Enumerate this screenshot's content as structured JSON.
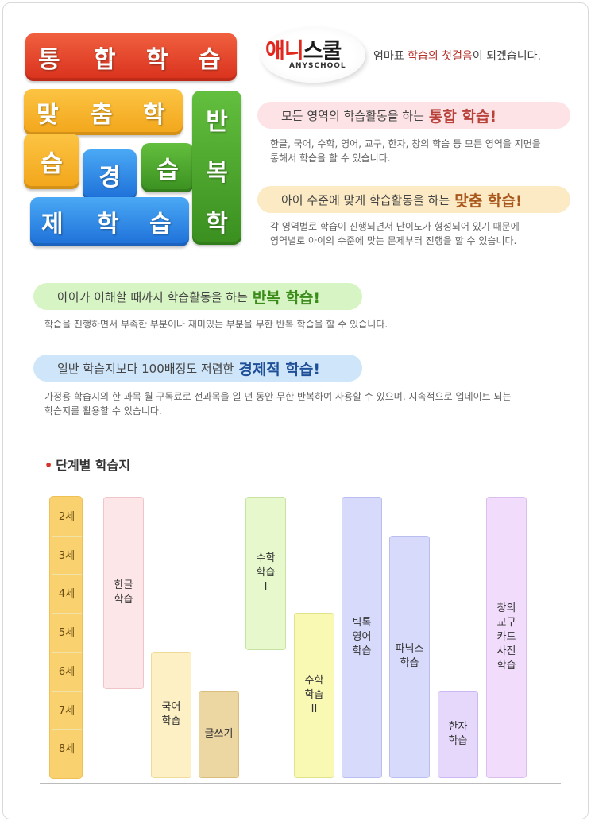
{
  "tiles": [
    {
      "t": "통",
      "c": "red"
    },
    {
      "t": "합",
      "c": "red"
    },
    {
      "t": "학",
      "c": "red"
    },
    {
      "t": "습",
      "c": "red"
    },
    {
      "t": "맞",
      "c": "yellow"
    },
    {
      "t": "춤",
      "c": "yellow"
    },
    {
      "t": "학",
      "c": "yellow"
    },
    {
      "t": "습",
      "c": "yellow"
    },
    {
      "t": "경",
      "c": "blue"
    },
    {
      "t": "제",
      "c": "blue"
    },
    {
      "t": "학",
      "c": "blue"
    },
    {
      "t": "습",
      "c": "blue"
    },
    {
      "t": "습",
      "c": "green"
    },
    {
      "t": "반",
      "c": "green"
    },
    {
      "t": "복",
      "c": "green"
    },
    {
      "t": "학",
      "c": "green"
    }
  ],
  "logo": {
    "main_a": "애니",
    "main_b": "스쿨",
    "sub": "ANYSCHOOL"
  },
  "tagline": {
    "pre": "엄마표 ",
    "highlight": "학습의 첫걸음",
    "post": "이 되겠습니다."
  },
  "features": [
    {
      "text": "모든 영역의 학습활동을 하는",
      "highlight": "통합 학습!",
      "desc": [
        "한글, 국어, 수학, 영어, 교구, 한자, 창의 학습 등 모든 영역을 지면을",
        "통해서 학습을 할 수 있습니다."
      ]
    },
    {
      "text": "아이 수준에 맞게 학습활동을 하는",
      "highlight": "맞춤 학습!",
      "desc": [
        "각 영역별로 학습이 진행되면서 난이도가 형성되어 있기 때문에",
        "영역별로 아이의 수준에 맞는 문제부터 진행을 할 수 있습니다."
      ]
    },
    {
      "text": "아이가 이해할 때까지 학습활동을 하는",
      "highlight": "반복 학습!",
      "desc": [
        "학습을 진행하면서 부족한 부분이나 재미있는 부분을 무한 반복 학습을 할 수 있습니다."
      ]
    },
    {
      "text": "일반 학습지보다 100배정도 저렴한",
      "highlight": "경제적 학습!",
      "desc": [
        "가정용 학습지의 한 과목 월 구독료로 전과목을 일 년 동안 무한 반복하여 사용할 수 있으며, 지속적으로 업데이트 되는",
        "학습지를 활용할 수 있습니다."
      ]
    }
  ],
  "section_title": "단계별 학습지",
  "ages": [
    "2세",
    "3세",
    "4세",
    "5세",
    "6세",
    "7세",
    "8세"
  ],
  "programs": [
    {
      "label": [
        "한글",
        "학습"
      ],
      "from": 2,
      "to": 6,
      "color": "pink"
    },
    {
      "label": [
        "국어",
        "학습"
      ],
      "from": 6,
      "to": 8,
      "color": "cream"
    },
    {
      "label": [
        "글쓰기"
      ],
      "from": 7,
      "to": 8,
      "color": "tan"
    },
    {
      "label": [
        "수학",
        "학습",
        "I"
      ],
      "from": 2,
      "to": 5,
      "color": "lime"
    },
    {
      "label": [
        "수학",
        "학습",
        "II"
      ],
      "from": 5,
      "to": 8,
      "color": "yellow"
    },
    {
      "label": [
        "틱톡",
        "영어",
        "학습"
      ],
      "from": 2,
      "to": 8,
      "color": "lav"
    },
    {
      "label": [
        "파닉스",
        "학습"
      ],
      "from": 3,
      "to": 8,
      "color": "lav"
    },
    {
      "label": [
        "한자",
        "학습"
      ],
      "from": 7,
      "to": 8,
      "color": "lav2"
    },
    {
      "label": [
        "창의",
        "교구",
        "카드",
        "사진",
        "학습"
      ],
      "from": 2,
      "to": 8,
      "color": "mauve"
    }
  ]
}
